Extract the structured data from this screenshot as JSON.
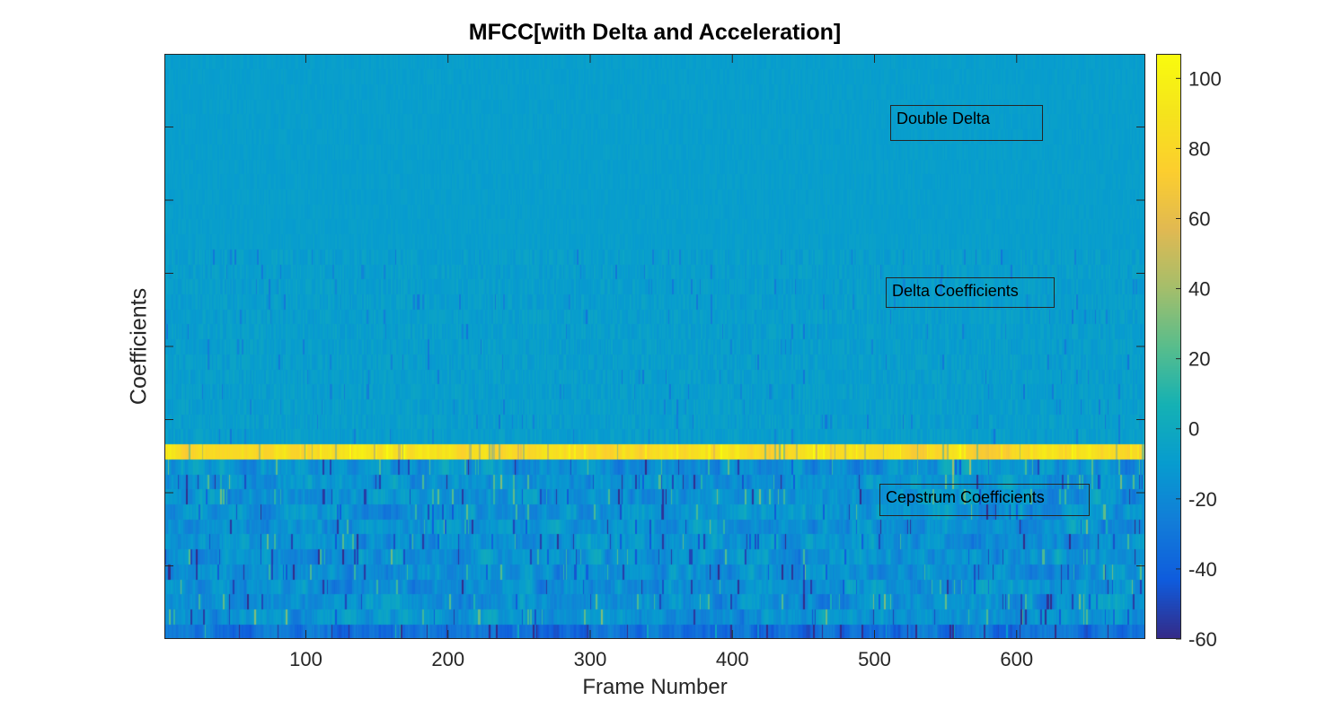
{
  "chart_data": {
    "type": "heatmap",
    "title": "MFCC[with Delta and Acceleration]",
    "xlabel": "Frame Number",
    "ylabel": "Coefficients",
    "xlim": [
      1,
      690
    ],
    "x_ticks": [
      100,
      200,
      300,
      400,
      500,
      600
    ],
    "rows": 39,
    "y_ticks": [],
    "colormap": "parula",
    "clim": [
      -60,
      107
    ],
    "colorbar_ticks": [
      -60,
      -40,
      -20,
      0,
      20,
      40,
      60,
      80,
      100
    ],
    "bands": [
      {
        "name": "Double Delta",
        "rows": [
          27,
          39
        ],
        "typical_value": -8
      },
      {
        "name": "Delta Coefficients",
        "rows": [
          14,
          26
        ],
        "typical_value": -8
      },
      {
        "name": "Cepstrum Coefficients",
        "rows": [
          1,
          13
        ],
        "typical_value": -15
      }
    ],
    "band_boundary_row_value": 85,
    "annotations": [
      "Double Delta",
      "Delta Coefficients",
      "Cepstrum Coefficients"
    ],
    "grid": false
  }
}
